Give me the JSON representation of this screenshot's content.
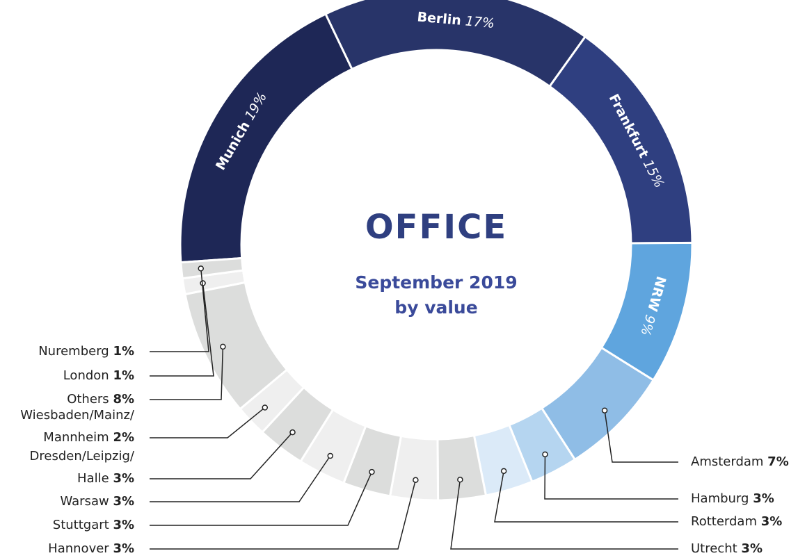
{
  "chart_data": {
    "type": "donut",
    "title": "OFFICE",
    "subtitle": "September 2019",
    "subtitle2": "by value",
    "categories": [
      "Munich",
      "Berlin",
      "Frankfurt",
      "NRW",
      "Amsterdam",
      "Hamburg",
      "Rotterdam",
      "Utrecht",
      "Hannover",
      "Stuttgart",
      "Warsaw",
      "Dresden/Leipzig/\nHalle",
      "Wiesbaden/Mainz/\nMannheim",
      "Others",
      "London",
      "Nuremberg"
    ],
    "values": [
      19,
      17,
      15,
      9,
      7,
      3,
      3,
      3,
      3,
      3,
      3,
      3,
      2,
      8,
      1,
      1
    ],
    "value_labels": [
      "19%",
      "17%",
      "15%",
      "9%",
      "7%",
      "3%",
      "3%",
      "3%",
      "3%",
      "3%",
      "3%",
      "3%",
      "2%",
      "8%",
      "1%",
      "1%"
    ],
    "colors": [
      "#1e2756",
      "#283469",
      "#2f3f80",
      "#5fa5de",
      "#8fbde6",
      "#b5d5f0",
      "#dbeaf8",
      "#dcdddc",
      "#efefef",
      "#dcdddc",
      "#efefef",
      "#dcdddc",
      "#efefef",
      "#dcdddc",
      "#efefef",
      "#dcdddc"
    ]
  }
}
